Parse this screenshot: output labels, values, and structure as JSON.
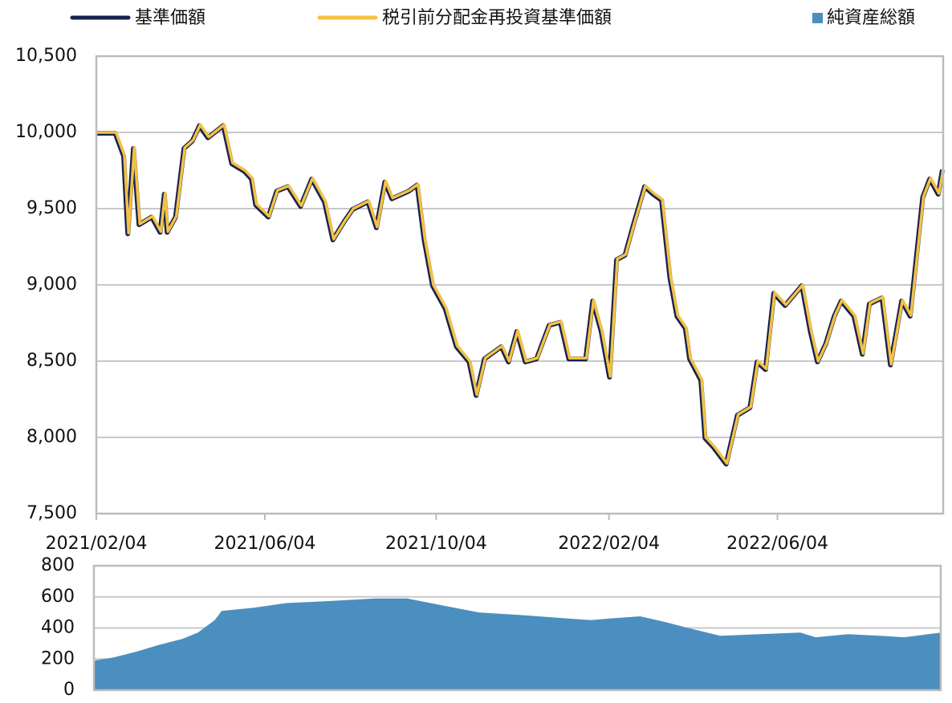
{
  "chart_data": [
    {
      "type": "line",
      "x": [
        "2021/02/04",
        "2021/02/18",
        "2021/02/24",
        "2021/02/27",
        "2021/03/03",
        "2021/03/07",
        "2021/03/16",
        "2021/03/22",
        "2021/03/25",
        "2021/03/27",
        "2021/04/02",
        "2021/04/08",
        "2021/04/14",
        "2021/04/19",
        "2021/04/25",
        "2021/05/06",
        "2021/05/12",
        "2021/05/21",
        "2021/05/26",
        "2021/05/29",
        "2021/06/07",
        "2021/06/13",
        "2021/06/21",
        "2021/06/30",
        "2021/07/08",
        "2021/07/17",
        "2021/07/23",
        "2021/07/31",
        "2021/08/06",
        "2021/08/17",
        "2021/08/23",
        "2021/08/29",
        "2021/09/03",
        "2021/09/15",
        "2021/09/21",
        "2021/09/26",
        "2021/10/02",
        "2021/10/11",
        "2021/10/19",
        "2021/10/28",
        "2021/11/02",
        "2021/11/08",
        "2021/11/20",
        "2021/11/25",
        "2021/12/01",
        "2021/12/07",
        "2021/12/15",
        "2021/12/24",
        "2022/01/01",
        "2022/01/07",
        "2022/01/19",
        "2022/01/24",
        "2022/01/30",
        "2022/02/05",
        "2022/02/10",
        "2022/02/16",
        "2022/02/22",
        "2022/03/02",
        "2022/03/08",
        "2022/03/14",
        "2022/03/20",
        "2022/03/25",
        "2022/03/31",
        "2022/04/03",
        "2022/04/11",
        "2022/04/14",
        "2022/04/20",
        "2022/04/29",
        "2022/05/07",
        "2022/05/16",
        "2022/05/21",
        "2022/05/27",
        "2022/06/02",
        "2022/06/10",
        "2022/06/22",
        "2022/06/28",
        "2022/07/03",
        "2022/07/09",
        "2022/07/15",
        "2022/07/20",
        "2022/07/29",
        "2022/08/04",
        "2022/08/09",
        "2022/08/18",
        "2022/08/24",
        "2022/09/01",
        "2022/09/07",
        "2022/09/16",
        "2022/09/21",
        "2022/09/27",
        "2022/09/30"
      ],
      "series": [
        {
          "name": "基準価額",
          "color": "#17224f",
          "values": [
            10000,
            10000,
            9850,
            9340,
            9900,
            9400,
            9450,
            9350,
            9600,
            9350,
            9450,
            9900,
            9950,
            10050,
            9970,
            10050,
            9800,
            9750,
            9700,
            9530,
            9450,
            9620,
            9650,
            9520,
            9700,
            9550,
            9300,
            9420,
            9500,
            9550,
            9380,
            9680,
            9570,
            9620,
            9660,
            9300,
            9000,
            8850,
            8600,
            8500,
            8280,
            8520,
            8600,
            8500,
            8700,
            8500,
            8520,
            8740,
            8760,
            8520,
            8520,
            8900,
            8700,
            8400,
            9170,
            9200,
            9400,
            9650,
            9600,
            9560,
            9050,
            8800,
            8720,
            8520,
            8380,
            8000,
            7940,
            7830,
            8150,
            8200,
            8500,
            8450,
            8950,
            8870,
            9000,
            8700,
            8500,
            8620,
            8800,
            8900,
            8800,
            8550,
            8880,
            8920,
            8480,
            8900,
            8800,
            9580,
            9700,
            9600,
            9760
          ]
        },
        {
          "name": "税引前分配金再投資基準価額",
          "color": "#f4c242",
          "values": [
            10000,
            10000,
            9850,
            9340,
            9900,
            9400,
            9450,
            9350,
            9600,
            9350,
            9450,
            9900,
            9950,
            10050,
            9970,
            10050,
            9800,
            9750,
            9700,
            9530,
            9450,
            9620,
            9650,
            9520,
            9700,
            9550,
            9300,
            9420,
            9500,
            9550,
            9380,
            9680,
            9570,
            9620,
            9660,
            9300,
            9000,
            8850,
            8600,
            8500,
            8280,
            8520,
            8600,
            8500,
            8700,
            8500,
            8520,
            8740,
            8760,
            8520,
            8520,
            8900,
            8700,
            8400,
            9170,
            9200,
            9400,
            9650,
            9600,
            9560,
            9050,
            8800,
            8720,
            8520,
            8380,
            8000,
            7940,
            7830,
            8150,
            8200,
            8500,
            8450,
            8950,
            8870,
            9000,
            8700,
            8500,
            8620,
            8800,
            8900,
            8800,
            8550,
            8880,
            8920,
            8480,
            8900,
            8800,
            9580,
            9700,
            9600,
            9760
          ]
        }
      ],
      "xlim": [
        "2021/02/04",
        "2022/09/30"
      ],
      "xticks": [
        "2021/02/04",
        "2021/06/04",
        "2021/10/04",
        "2022/02/04",
        "2022/06/04"
      ],
      "ylim": [
        7500,
        10500
      ],
      "yticks": [
        {
          "value": 7500,
          "label": "7,500"
        },
        {
          "value": 8000,
          "label": "8,000"
        },
        {
          "value": 8500,
          "label": "8,500"
        },
        {
          "value": 9000,
          "label": "9,000"
        },
        {
          "value": 9500,
          "label": "9,500"
        },
        {
          "value": 10000,
          "label": "10,000"
        },
        {
          "value": 10500,
          "label": "10,500"
        }
      ],
      "grid": true
    },
    {
      "type": "area",
      "x": [
        "2021/02/04",
        "2021/02/18",
        "2021/03/07",
        "2021/03/22",
        "2021/04/08",
        "2021/04/19",
        "2021/05/01",
        "2021/05/06",
        "2021/05/29",
        "2021/06/21",
        "2021/07/25",
        "2021/08/23",
        "2021/09/15",
        "2021/10/13",
        "2021/11/05",
        "2021/12/10",
        "2022/01/01",
        "2022/01/24",
        "2022/02/05",
        "2022/02/28",
        "2022/03/17",
        "2022/04/03",
        "2022/04/26",
        "2022/05/24",
        "2022/06/22",
        "2022/07/03",
        "2022/07/26",
        "2022/08/18",
        "2022/09/04",
        "2022/09/21",
        "2022/09/30"
      ],
      "series": [
        {
          "name": "純資産総額",
          "color": "#4a8fbf",
          "values": [
            190,
            210,
            250,
            290,
            330,
            370,
            450,
            510,
            530,
            560,
            575,
            590,
            590,
            540,
            500,
            480,
            465,
            450,
            460,
            475,
            440,
            400,
            350,
            360,
            370,
            340,
            360,
            350,
            340,
            360,
            370
          ]
        }
      ],
      "xlim": [
        "2021/02/04",
        "2022/09/30"
      ],
      "ylim": [
        0,
        800
      ],
      "yticks": [
        0,
        200,
        400,
        600,
        800
      ],
      "grid": true
    }
  ]
}
